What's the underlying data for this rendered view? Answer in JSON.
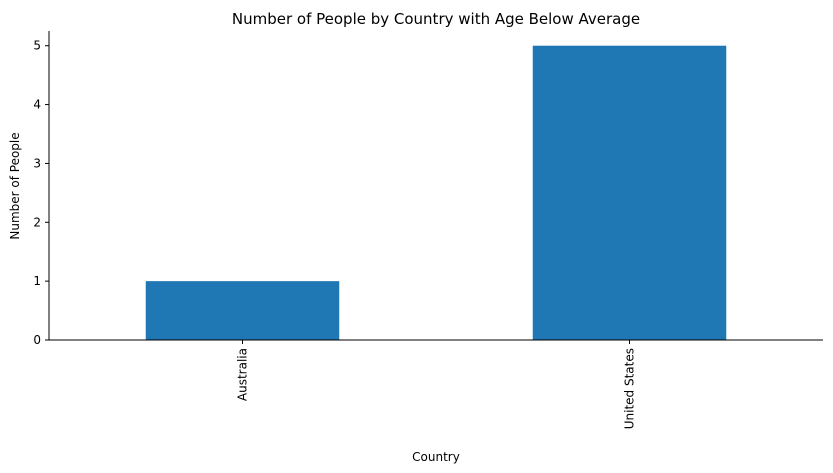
{
  "chart_data": {
    "type": "bar",
    "title": "Number of People by Country with Age Below Average",
    "xlabel": "Country",
    "ylabel": "Number of People",
    "categories": [
      "Australia",
      "United States"
    ],
    "values": [
      1,
      5
    ],
    "ylim": [
      0,
      5.25
    ],
    "yticks": [
      0,
      1,
      2,
      3,
      4,
      5
    ],
    "bar_color": "#1f77b4",
    "grid": false,
    "legend": "none"
  }
}
